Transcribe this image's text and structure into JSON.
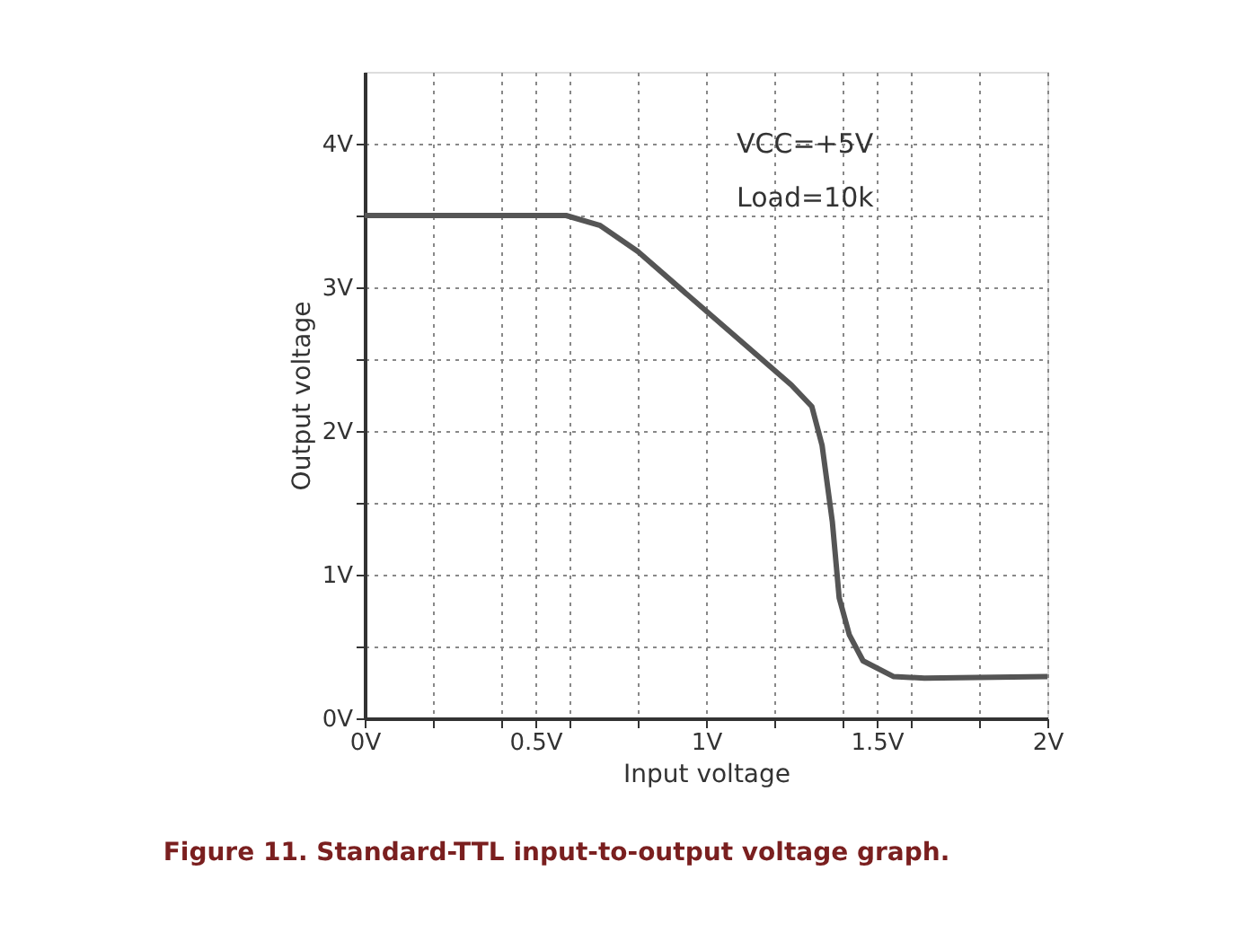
{
  "chart_data": {
    "type": "line",
    "xlabel": "Input voltage",
    "ylabel": "Output voltage",
    "x": [
      0,
      0.59,
      0.69,
      0.8,
      0.94,
      1.11,
      1.25,
      1.31,
      1.34,
      1.37,
      1.39,
      1.42,
      1.46,
      1.55,
      1.64,
      2.0
    ],
    "series": [
      {
        "color": "#555555",
        "values": [
          3.5,
          3.5,
          3.43,
          3.25,
          2.96,
          2.61,
          2.32,
          2.17,
          1.9,
          1.37,
          0.84,
          0.58,
          0.4,
          0.29,
          0.28,
          0.29
        ]
      }
    ],
    "xlim": [
      0,
      2
    ],
    "ylim": [
      0,
      4.5
    ],
    "xticks": [
      {
        "value": 0,
        "label": "0V"
      },
      {
        "value": 0.2,
        "label": null
      },
      {
        "value": 0.4,
        "label": null
      },
      {
        "value": 0.5,
        "label": "0.5V"
      },
      {
        "value": 0.6,
        "label": null
      },
      {
        "value": 0.8,
        "label": null
      },
      {
        "value": 1,
        "label": "1V"
      },
      {
        "value": 1.2,
        "label": null
      },
      {
        "value": 1.4,
        "label": null
      },
      {
        "value": 1.5,
        "label": "1.5V"
      },
      {
        "value": 1.6,
        "label": null
      },
      {
        "value": 1.8,
        "label": null
      },
      {
        "value": 2,
        "label": "2V"
      }
    ],
    "yticks": [
      {
        "value": 0,
        "label": "0V"
      },
      {
        "value": 0.5,
        "label": null
      },
      {
        "value": 1,
        "label": "1V"
      },
      {
        "value": 1.5,
        "label": null
      },
      {
        "value": 2,
        "label": "2V"
      },
      {
        "value": 2.5,
        "label": null
      },
      {
        "value": 3,
        "label": "3V"
      },
      {
        "value": 3.5,
        "label": null
      },
      {
        "value": 4,
        "label": "4V"
      }
    ],
    "grid": true,
    "marker": "none",
    "line_style": "solid",
    "annotations": [
      "VCC=+5V",
      "Load=10k",
      "Figure 11. Standard-TTL input-to-output voltage graph."
    ]
  }
}
